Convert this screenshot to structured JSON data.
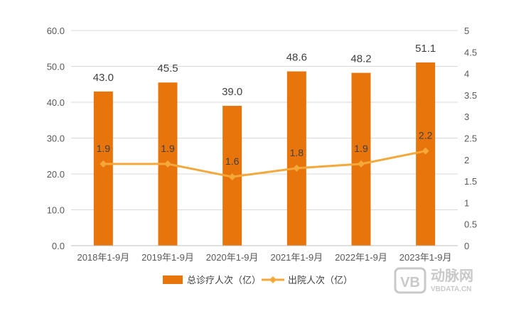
{
  "chart_data": {
    "type": "bar",
    "categories": [
      "2018年1-9月",
      "2019年1-9月",
      "2020年1-9月",
      "2021年1-9月",
      "2022年1-9月",
      "2023年1-9月"
    ],
    "series": [
      {
        "name": "总诊疗人次（亿）",
        "type": "bar",
        "axis": "left",
        "values": [
          43.0,
          45.5,
          39.0,
          48.6,
          48.2,
          51.1
        ]
      },
      {
        "name": "出院人次（亿）",
        "type": "line",
        "axis": "right",
        "values": [
          1.9,
          1.9,
          1.6,
          1.8,
          1.9,
          2.2
        ]
      }
    ],
    "y_left": {
      "range": [
        0,
        60
      ],
      "ticks": [
        "0.0",
        "10.0",
        "20.0",
        "30.0",
        "40.0",
        "50.0",
        "60.0"
      ]
    },
    "y_right": {
      "range": [
        0,
        5
      ],
      "ticks": [
        "0",
        "0.5",
        "1",
        "1.5",
        "2",
        "2.5",
        "3",
        "3.5",
        "4",
        "4.5",
        "5"
      ]
    },
    "grid": true,
    "legend": "bottom",
    "colors": {
      "bar": "#E8740C",
      "line": "#F5A83A",
      "grid": "#D9D9D9"
    }
  },
  "watermark": {
    "logo_text": "VB",
    "name": "动脉网",
    "url": "VBDATA.CN"
  }
}
